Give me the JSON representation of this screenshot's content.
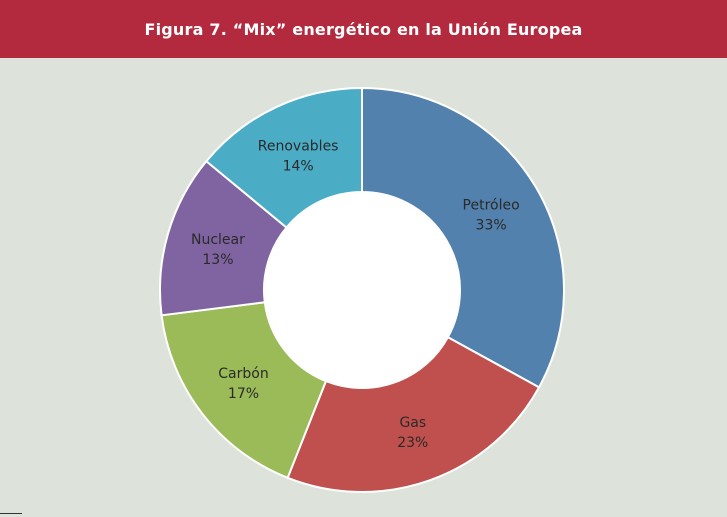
{
  "header": {
    "title": "Figura 7. “Mix” energético en la Unión Europea"
  },
  "colors": {
    "header_bg": "#b32a3e",
    "chart_bg": "#dde2da"
  },
  "chart_data": {
    "type": "pie",
    "donut": true,
    "title": "",
    "slices": [
      {
        "label": "Petróleo",
        "value": 33,
        "display": "33%",
        "color": "#5381ad"
      },
      {
        "label": "Gas",
        "value": 23,
        "display": "23%",
        "color": "#c0504d"
      },
      {
        "label": "Carbón",
        "value": 17,
        "display": "17%",
        "color": "#9bbb59"
      },
      {
        "label": "Nuclear",
        "value": 13,
        "display": "13%",
        "color": "#8064a2"
      },
      {
        "label": "Renovables",
        "value": 14,
        "display": "14%",
        "color": "#4bacc6"
      }
    ],
    "legend": "none"
  }
}
